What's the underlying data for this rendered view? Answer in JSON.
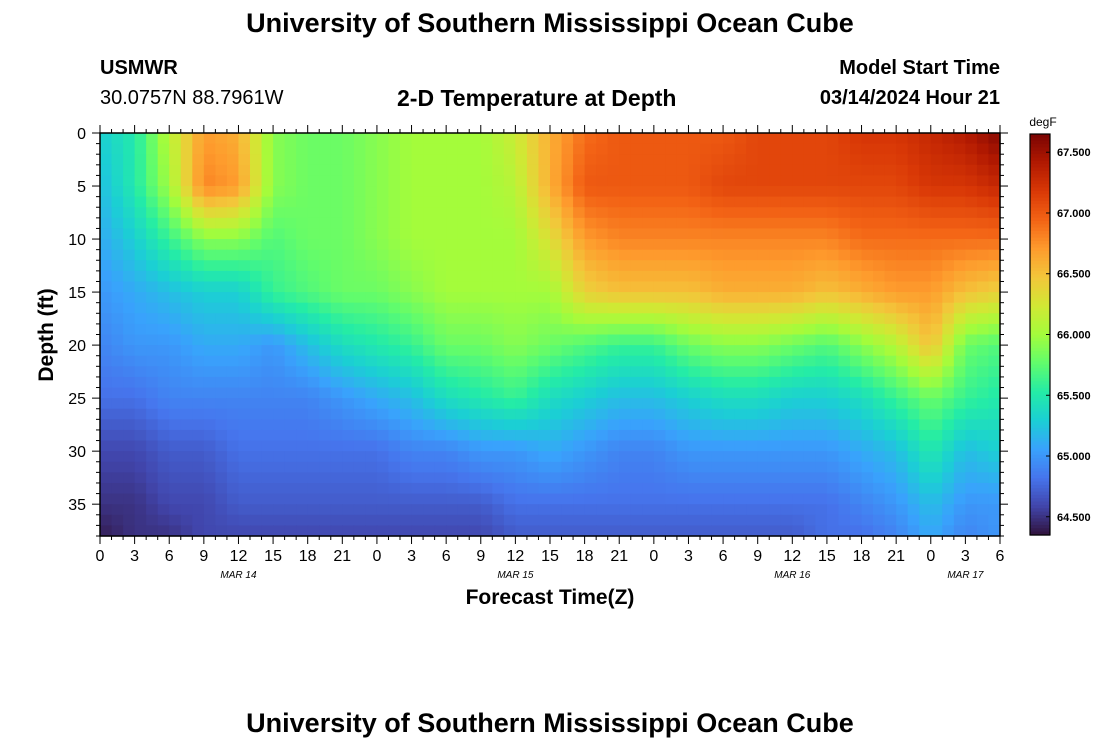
{
  "header": {
    "title": "University of Southern Mississippi Ocean Cube",
    "station": "USMWR",
    "coords": "30.0757N  88.7961W",
    "subtitle": "2-D Temperature at Depth",
    "model_label": "Model Start Time",
    "model_time": "03/14/2024 Hour 21"
  },
  "footer": {
    "title": "University of Southern Mississippi Ocean Cube"
  },
  "chart_data": {
    "type": "heatmap",
    "title": "2-D Temperature at Depth",
    "xlabel": "Forecast Time(Z)",
    "ylabel": "Depth (ft)",
    "x_tick_labels": [
      "0",
      "3",
      "6",
      "9",
      "12",
      "15",
      "18",
      "21",
      "0",
      "3",
      "6",
      "9",
      "12",
      "15",
      "18",
      "21",
      "0",
      "3",
      "6",
      "9",
      "12",
      "15",
      "18",
      "21",
      "0",
      "3",
      "6"
    ],
    "date_labels": [
      {
        "label": "MAR 14",
        "hour_index": 12
      },
      {
        "label": "MAR 15",
        "hour_index": 36
      },
      {
        "label": "MAR 16",
        "hour_index": 60
      },
      {
        "label": "MAR 17",
        "hour_index": 75
      }
    ],
    "x_hours_range": [
      0,
      78
    ],
    "y_ticks": [
      0,
      5,
      10,
      15,
      20,
      25,
      30,
      35
    ],
    "ylim": [
      0,
      38
    ],
    "colorbar": {
      "unit": "degF",
      "min": 64.35,
      "max": 67.65,
      "ticks": [
        "64.500",
        "65.000",
        "65.500",
        "66.000",
        "66.500",
        "67.000",
        "67.500"
      ],
      "tick_values": [
        64.5,
        65.0,
        65.5,
        66.0,
        66.5,
        67.0,
        67.5
      ],
      "colors": [
        "#30123b",
        "#4145ab",
        "#4675ed",
        "#39a2fc",
        "#1bcfd4",
        "#24eca6",
        "#61fc6c",
        "#a4fc3b",
        "#d1e834",
        "#f3c63a",
        "#fe9b2d",
        "#f36315",
        "#d93806",
        "#b11901",
        "#7a0403"
      ]
    },
    "depths_ft": [
      0,
      5,
      10,
      15,
      20,
      25,
      30,
      35,
      38
    ],
    "hours": [
      0,
      3,
      6,
      9,
      12,
      15,
      18,
      21,
      24,
      27,
      30,
      33,
      36,
      39,
      42,
      45,
      48,
      51,
      54,
      57,
      60,
      63,
      66,
      69,
      72,
      75,
      78
    ],
    "temperature_degF": [
      [
        65.3,
        65.5,
        66.1,
        66.7,
        66.6,
        65.9,
        65.8,
        65.8,
        65.9,
        66.0,
        66.0,
        66.0,
        66.2,
        66.6,
        66.9,
        67.0,
        67.0,
        67.0,
        67.0,
        67.1,
        67.1,
        67.1,
        67.2,
        67.2,
        67.3,
        67.4,
        67.6
      ],
      [
        65.2,
        65.5,
        66.0,
        66.8,
        66.7,
        65.9,
        65.8,
        65.8,
        65.9,
        66.0,
        66.0,
        66.0,
        66.1,
        66.6,
        67.0,
        67.0,
        67.0,
        67.0,
        67.1,
        67.1,
        67.1,
        67.1,
        67.1,
        67.1,
        67.2,
        67.2,
        67.3
      ],
      [
        65.1,
        65.3,
        65.6,
        65.9,
        65.9,
        65.7,
        65.8,
        65.8,
        65.9,
        66.0,
        66.0,
        66.0,
        66.0,
        66.3,
        66.7,
        66.8,
        66.8,
        66.8,
        66.8,
        66.8,
        66.8,
        66.8,
        66.9,
        66.9,
        66.9,
        66.9,
        66.9
      ],
      [
        65.0,
        65.1,
        65.2,
        65.3,
        65.3,
        65.6,
        65.7,
        65.8,
        65.8,
        65.9,
        66.0,
        66.0,
        66.0,
        66.0,
        66.4,
        66.5,
        66.5,
        66.5,
        66.6,
        66.6,
        66.6,
        66.5,
        66.6,
        66.7,
        66.7,
        66.5,
        66.4
      ],
      [
        64.9,
        65.0,
        65.0,
        65.1,
        65.1,
        65.0,
        65.2,
        65.4,
        65.5,
        65.6,
        65.8,
        65.8,
        65.9,
        65.8,
        65.7,
        65.6,
        65.6,
        65.8,
        65.9,
        65.9,
        65.8,
        65.7,
        65.9,
        66.1,
        66.5,
        65.8,
        65.7
      ],
      [
        64.8,
        64.8,
        64.9,
        64.9,
        64.9,
        64.9,
        64.9,
        65.0,
        65.1,
        65.2,
        65.4,
        65.5,
        65.6,
        65.4,
        65.3,
        65.2,
        65.2,
        65.3,
        65.4,
        65.4,
        65.3,
        65.3,
        65.4,
        65.6,
        65.8,
        65.6,
        65.5
      ],
      [
        64.6,
        64.6,
        64.7,
        64.7,
        64.8,
        64.8,
        64.8,
        64.8,
        64.8,
        64.9,
        64.9,
        65.0,
        65.0,
        65.1,
        65.0,
        64.9,
        64.9,
        65.0,
        65.0,
        65.0,
        65.0,
        65.0,
        65.1,
        65.2,
        65.5,
        65.2,
        65.3
      ],
      [
        64.5,
        64.5,
        64.6,
        64.6,
        64.7,
        64.7,
        64.7,
        64.7,
        64.7,
        64.7,
        64.7,
        64.7,
        64.8,
        64.8,
        64.8,
        64.8,
        64.8,
        64.8,
        64.8,
        64.8,
        64.8,
        64.8,
        64.9,
        65.0,
        65.2,
        65.0,
        65.0
      ],
      [
        64.4,
        64.5,
        64.5,
        64.6,
        64.6,
        64.6,
        64.6,
        64.6,
        64.6,
        64.6,
        64.6,
        64.6,
        64.7,
        64.7,
        64.7,
        64.7,
        64.7,
        64.7,
        64.7,
        64.7,
        64.7,
        64.8,
        64.8,
        64.9,
        65.1,
        64.9,
        65.0
      ]
    ]
  }
}
